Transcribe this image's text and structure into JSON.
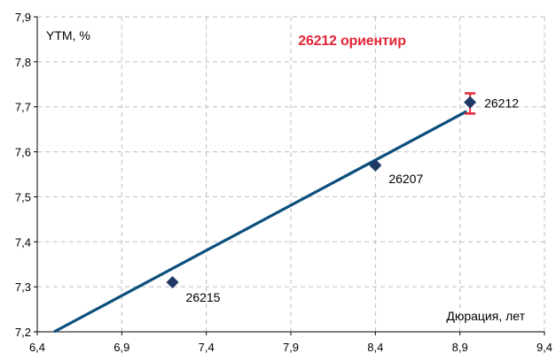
{
  "chart_data": {
    "type": "scatter",
    "title": "26212 ориентир",
    "ylabel": "YTM, %",
    "xlabel": "Дюрация, лет",
    "xlim": [
      6.4,
      9.4
    ],
    "ylim": [
      7.2,
      7.9
    ],
    "x_ticks": [
      6.4,
      6.9,
      7.4,
      7.9,
      8.4,
      8.9,
      9.4
    ],
    "y_ticks": [
      7.2,
      7.3,
      7.4,
      7.5,
      7.6,
      7.7,
      7.8,
      7.9
    ],
    "x_tick_labels": [
      "6,4",
      "6,9",
      "7,4",
      "7,9",
      "8,4",
      "8,9",
      "9,4"
    ],
    "y_tick_labels": [
      "7,2",
      "7,3",
      "7,4",
      "7,5",
      "7,6",
      "7,7",
      "7,8",
      "7,9"
    ],
    "grid": true,
    "points": [
      {
        "label": "26215",
        "x": 7.2,
        "y": 7.31
      },
      {
        "label": "26207",
        "x": 8.4,
        "y": 7.57
      },
      {
        "label": "26212",
        "x": 8.96,
        "y": 7.71
      }
    ],
    "trendline": {
      "x": [
        6.5,
        8.94
      ],
      "y": [
        7.2,
        7.69
      ]
    },
    "error_bar": {
      "point": "26212",
      "x": 8.96,
      "y_low": 7.685,
      "y_high": 7.73
    },
    "colors": {
      "marker": "#1f3864",
      "trendline": "#0b4f7c",
      "error_bar": "#e32636",
      "title": "#e32636",
      "grid": "#bfbfbf"
    }
  }
}
